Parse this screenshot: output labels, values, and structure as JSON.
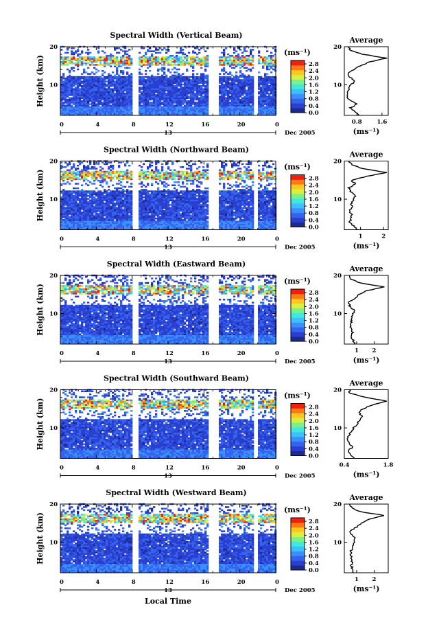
{
  "chart_data": [
    {
      "type": "heatmap",
      "title": "Spectral Width (Vertical Beam)",
      "ylabel": "Height (km)",
      "yticks": [
        "10",
        "20"
      ],
      "xticks": [
        "0",
        "4",
        "8",
        "12",
        "16",
        "20",
        "0"
      ],
      "day_label": "13",
      "date_label": "Dec 2005",
      "xlim": [
        0,
        24
      ],
      "ylim": [
        2,
        20
      ],
      "colorbar": {
        "unit_label": "(ms⁻¹)",
        "ticks": [
          "2.8",
          "2.4",
          "2.0",
          "1.6",
          "1.2",
          "0.8",
          "0.4",
          "0.0"
        ],
        "range": [
          0,
          3.0
        ]
      },
      "data_gaps_hours": [
        [
          7.8,
          8.7
        ],
        [
          16.4,
          17.6
        ],
        [
          21.5,
          22.0
        ]
      ],
      "tropopause_km": 16.5,
      "average_profile": {
        "title": "Average",
        "xlabel": "(ms⁻¹)",
        "xticks": [
          "0.8",
          "1.6"
        ],
        "xlim": [
          0.4,
          1.8
        ],
        "height_km": [
          2,
          3,
          4,
          5,
          6,
          7,
          8,
          9,
          10,
          11,
          12,
          13,
          14,
          15,
          16,
          17,
          18,
          19,
          20
        ],
        "values": [
          0.9,
          0.75,
          0.6,
          0.8,
          0.55,
          0.5,
          0.5,
          0.55,
          0.6,
          0.75,
          0.6,
          0.5,
          0.7,
          0.9,
          1.2,
          1.75,
          1.0,
          0.6,
          0.55
        ]
      }
    },
    {
      "type": "heatmap",
      "title": "Spectral Width (Northward Beam)",
      "ylabel": "Height (km)",
      "yticks": [
        "10",
        "20"
      ],
      "xticks": [
        "0",
        "4",
        "8",
        "12",
        "16",
        "20",
        "0"
      ],
      "day_label": "13",
      "date_label": "Dec 2005",
      "xlim": [
        0,
        24
      ],
      "ylim": [
        2,
        20
      ],
      "colorbar": {
        "unit_label": "(ms⁻¹)",
        "ticks": [
          "2.8",
          "2.4",
          "2.0",
          "1.6",
          "1.2",
          "0.8",
          "0.4",
          "0.0"
        ],
        "range": [
          0,
          3.0
        ]
      },
      "data_gaps_hours": [
        [
          7.8,
          8.7
        ],
        [
          16.4,
          17.6
        ],
        [
          21.5,
          22.0
        ]
      ],
      "tropopause_km": 16.5,
      "average_profile": {
        "title": "Average",
        "xlabel": "(ms⁻¹)",
        "xticks": [
          "1",
          "2"
        ],
        "xlim": [
          0.3,
          2.2
        ],
        "height_km": [
          2,
          3,
          4,
          5,
          6,
          7,
          8,
          9,
          10,
          11,
          12,
          13,
          14,
          15,
          16,
          17,
          18,
          19,
          20
        ],
        "values": [
          0.9,
          0.7,
          0.55,
          0.6,
          0.6,
          0.55,
          0.65,
          0.6,
          0.7,
          0.8,
          0.55,
          0.5,
          0.8,
          0.6,
          1.3,
          2.1,
          1.1,
          0.6,
          0.5
        ]
      }
    },
    {
      "type": "heatmap",
      "title": "Spectral Width (Eastward Beam)",
      "ylabel": "Height (km)",
      "yticks": [
        "10",
        "20"
      ],
      "xticks": [
        "0",
        "4",
        "8",
        "12",
        "16",
        "20",
        "0"
      ],
      "day_label": "13",
      "date_label": "Dec 2005",
      "xlim": [
        0,
        24
      ],
      "ylim": [
        2,
        20
      ],
      "colorbar": {
        "unit_label": "(ms⁻¹)",
        "ticks": [
          "2.8",
          "2.4",
          "2.0",
          "1.6",
          "1.2",
          "0.8",
          "0.4",
          "0.0"
        ],
        "range": [
          0,
          3.0
        ]
      },
      "data_gaps_hours": [
        [
          7.8,
          8.7
        ],
        [
          16.4,
          17.6
        ],
        [
          21.5,
          22.0
        ]
      ],
      "tropopause_km": 16.5,
      "average_profile": {
        "title": "Average",
        "xlabel": "(ms⁻¹)",
        "xticks": [
          "1",
          "2"
        ],
        "xlim": [
          0.3,
          2.8
        ],
        "height_km": [
          2,
          3,
          4,
          5,
          6,
          7,
          8,
          9,
          10,
          11,
          12,
          13,
          14,
          15,
          16,
          17,
          18,
          19,
          20
        ],
        "values": [
          0.9,
          0.8,
          0.7,
          0.75,
          0.7,
          0.65,
          0.7,
          0.75,
          0.8,
          0.85,
          0.6,
          0.55,
          0.9,
          1.1,
          1.6,
          2.6,
          1.2,
          0.7,
          0.6
        ]
      }
    },
    {
      "type": "heatmap",
      "title": "Spectral Width (Southward Beam)",
      "ylabel": "Height (km)",
      "yticks": [
        "10",
        "20"
      ],
      "xticks": [
        "0",
        "4",
        "8",
        "12",
        "16",
        "20",
        "0"
      ],
      "day_label": "13",
      "date_label": "Dec 2005",
      "xlim": [
        0,
        24
      ],
      "ylim": [
        2,
        20
      ],
      "colorbar": {
        "unit_label": "(ms⁻¹)",
        "ticks": [
          "2.8",
          "2.4",
          "2.0",
          "1.6",
          "1.2",
          "0.8",
          "0.4",
          "0.0"
        ],
        "range": [
          0,
          3.0
        ]
      },
      "data_gaps_hours": [
        [
          7.8,
          8.7
        ],
        [
          16.4,
          17.6
        ],
        [
          21.5,
          22.0
        ]
      ],
      "tropopause_km": 16.5,
      "average_profile": {
        "title": "Average",
        "xlabel": "(ms⁻¹)",
        "xticks": [
          "0.4",
          "1.8"
        ],
        "xlim": [
          0.4,
          1.8
        ],
        "height_km": [
          2,
          3,
          4,
          5,
          6,
          7,
          8,
          9,
          10,
          11,
          12,
          13,
          14,
          15,
          16,
          17,
          18,
          19,
          20
        ],
        "values": [
          0.7,
          0.6,
          0.55,
          0.65,
          0.55,
          0.5,
          0.55,
          0.6,
          0.7,
          0.8,
          0.9,
          1.0,
          0.85,
          1.0,
          1.3,
          1.75,
          1.1,
          0.6,
          0.55
        ]
      }
    },
    {
      "type": "heatmap",
      "title": "Spectral Width (Westward Beam)",
      "ylabel": "Height (km)",
      "yticks": [
        "10",
        "20"
      ],
      "xticks": [
        "0",
        "4",
        "8",
        "12",
        "16",
        "20",
        "0"
      ],
      "day_label": "13",
      "date_label": "Dec 2005",
      "xlim": [
        0,
        24
      ],
      "ylim": [
        2,
        20
      ],
      "colorbar": {
        "unit_label": "(ms⁻¹)",
        "ticks": [
          "2.8",
          "2.4",
          "2.0",
          "1.6",
          "1.2",
          "0.8",
          "0.4",
          "0.0"
        ],
        "range": [
          0,
          3.0
        ]
      },
      "data_gaps_hours": [
        [
          7.8,
          8.7
        ],
        [
          16.4,
          17.6
        ],
        [
          21.5,
          22.0
        ]
      ],
      "tropopause_km": 16.5,
      "average_profile": {
        "title": "Average",
        "xlabel": "(ms⁻¹)",
        "xticks": [
          "1",
          "2"
        ],
        "xlim": [
          0.3,
          2.8
        ],
        "height_km": [
          2,
          3,
          4,
          5,
          6,
          7,
          8,
          9,
          10,
          11,
          12,
          13,
          14,
          15,
          16,
          17,
          18,
          19,
          20
        ],
        "values": [
          0.8,
          0.75,
          0.7,
          0.75,
          0.7,
          0.65,
          0.7,
          0.8,
          0.85,
          0.9,
          0.7,
          0.65,
          1.0,
          1.3,
          1.7,
          2.6,
          1.2,
          0.7,
          0.6
        ]
      }
    }
  ],
  "xlabel": "Local Time",
  "colors": {
    "colormap": [
      "#1c2a8e",
      "#2a3fd0",
      "#3464ee",
      "#3a90ff",
      "#3ec0ff",
      "#40e8e0",
      "#7cf08a",
      "#d8f040",
      "#ffc820",
      "#ff7a10",
      "#f02010"
    ],
    "background": "#ffffff",
    "gap": "#ffffff"
  }
}
